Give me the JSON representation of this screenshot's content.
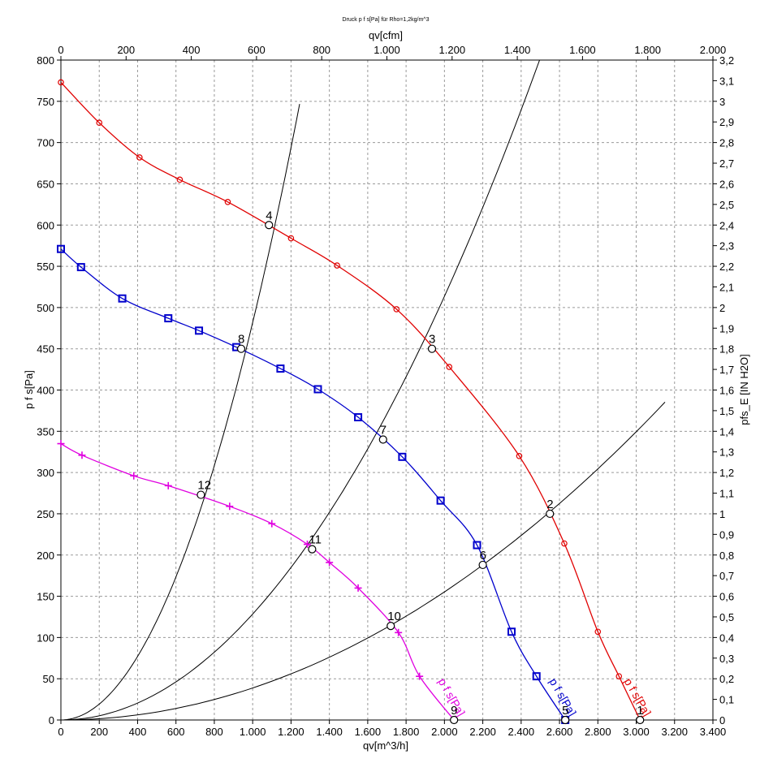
{
  "chart_data": {
    "type": "line",
    "title": "Druck p f s[Pa] für Rho=1,2kg/m^3",
    "xlabel": "qv[m^3/h]",
    "x2label": "qv[cfm]",
    "ylabel": "p f s[Pa]",
    "y2label": "pfs_E [IN H2O]",
    "xlim": [
      0,
      3400
    ],
    "ylim": [
      0,
      800
    ],
    "x2lim": [
      0,
      2000
    ],
    "y2lim": [
      0,
      3.2
    ],
    "grid": true,
    "x_ticks": [
      "0",
      "200",
      "400",
      "600",
      "800",
      "1.000",
      "1.200",
      "1.400",
      "1.600",
      "1.800",
      "2.000",
      "2.200",
      "2.400",
      "2.600",
      "2.800",
      "3.000",
      "3.200",
      "3.400"
    ],
    "x2_ticks": [
      "0",
      "200",
      "400",
      "600",
      "800",
      "1.000",
      "1.200",
      "1.400",
      "1.600",
      "1.800",
      "2.000"
    ],
    "y_ticks": [
      "0",
      "50",
      "100",
      "150",
      "200",
      "250",
      "300",
      "350",
      "400",
      "450",
      "500",
      "550",
      "600",
      "650",
      "700",
      "750",
      "800"
    ],
    "y2_ticks": [
      "0",
      "0,1",
      "0,2",
      "0,3",
      "0,4",
      "0,5",
      "0,6",
      "0,7",
      "0,8",
      "0,9",
      "1",
      "1,1",
      "1,2",
      "1,3",
      "1,4",
      "1,5",
      "1,6",
      "1,7",
      "1,8",
      "1,9",
      "2",
      "2,1",
      "2,2",
      "2,3",
      "2,4",
      "2,5",
      "2,6",
      "2,7",
      "2,8",
      "2,9",
      "3",
      "3,1",
      "3,2"
    ],
    "series": [
      {
        "name": "p f s[Pa]",
        "color": "#e00000",
        "marker": "circle",
        "x": [
          0,
          200,
          410,
          620,
          870,
          1200,
          1440,
          1750,
          2025,
          2390,
          2625,
          2800,
          2910,
          3020
        ],
        "y": [
          773,
          724,
          682,
          655,
          628,
          584,
          551,
          498,
          428,
          320,
          214,
          107,
          53,
          0
        ]
      },
      {
        "name": "p f s[Pa]",
        "color": "#0000cc",
        "marker": "square",
        "x": [
          0,
          105,
          320,
          560,
          720,
          915,
          1145,
          1340,
          1550,
          1780,
          1980,
          2170,
          2350,
          2480,
          2630
        ],
        "y": [
          571,
          549,
          511,
          487,
          472,
          452,
          426,
          401,
          367,
          319,
          266,
          212,
          107,
          53,
          0
        ]
      },
      {
        "name": "p f s[Pa]",
        "color": "#e000e0",
        "marker": "plus",
        "x": [
          0,
          110,
          380,
          560,
          880,
          1100,
          1285,
          1400,
          1550,
          1760,
          1870,
          2050
        ],
        "y": [
          335,
          321,
          296,
          284,
          259,
          238,
          213,
          191,
          160,
          106,
          53,
          0
        ]
      }
    ],
    "system_curves": [
      {
        "k": 0.0004818,
        "x_end": 1245
      },
      {
        "k": 0.0001284,
        "x_end": 2560
      },
      {
        "k": 3.883e-05,
        "x_end": 3150
      }
    ],
    "operating_points": [
      {
        "label": "1",
        "x": 3020,
        "y": 0
      },
      {
        "label": "2",
        "x": 2550,
        "y": 250
      },
      {
        "label": "3",
        "x": 1935,
        "y": 450
      },
      {
        "label": "4",
        "x": 1085,
        "y": 600
      },
      {
        "label": "5",
        "x": 2630,
        "y": 0
      },
      {
        "label": "6",
        "x": 2200,
        "y": 188
      },
      {
        "label": "7",
        "x": 1680,
        "y": 340
      },
      {
        "label": "8",
        "x": 940,
        "y": 450
      },
      {
        "label": "9",
        "x": 2050,
        "y": 0
      },
      {
        "label": "10",
        "x": 1720,
        "y": 114
      },
      {
        "label": "11",
        "x": 1310,
        "y": 207
      },
      {
        "label": "12",
        "x": 730,
        "y": 273
      }
    ]
  }
}
